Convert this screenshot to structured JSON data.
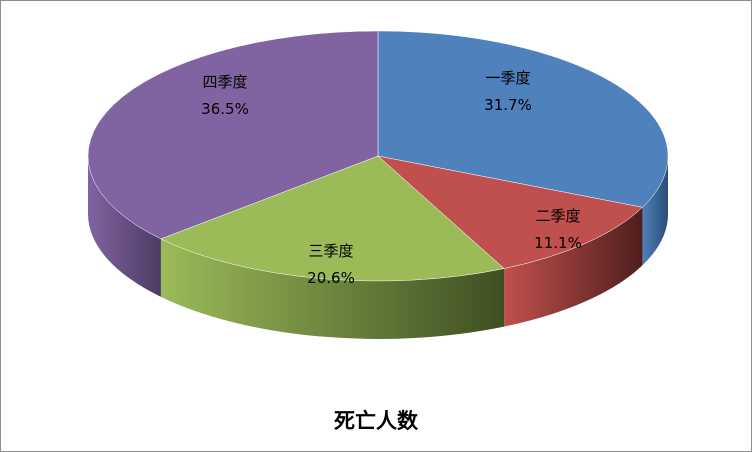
{
  "chart_data": {
    "type": "pie",
    "style": "3d",
    "title": "死亡人数",
    "categories": [
      "一季度",
      "二季度",
      "三季度",
      "四季度"
    ],
    "values": [
      31.7,
      11.1,
      20.6,
      36.5
    ],
    "value_labels": [
      "31.7%",
      "11.1%",
      "20.6%",
      "36.5%"
    ],
    "colors": [
      "#4F81BD",
      "#C0504D",
      "#9BBB59",
      "#8064A2"
    ],
    "side_colors": [
      "#2C4D75",
      "#4F1E1D",
      "#3E4F22",
      "#4D3B63"
    ],
    "legend": "none"
  }
}
